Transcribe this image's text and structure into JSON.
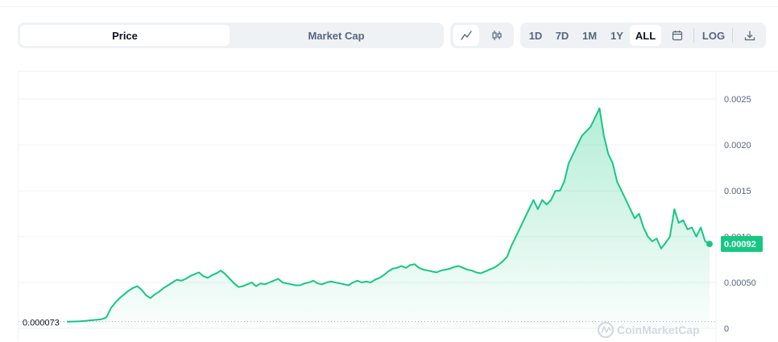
{
  "tabs": {
    "price_label": "Price",
    "market_cap_label": "Market Cap",
    "active": "price"
  },
  "chart_types": [
    {
      "name": "line-chart-icon",
      "active": true
    },
    {
      "name": "candlestick-icon",
      "active": false
    }
  ],
  "ranges": [
    "1D",
    "7D",
    "1M",
    "1Y",
    "ALL"
  ],
  "active_range": "ALL",
  "log_label": "LOG",
  "icons": {
    "calendar": "calendar-icon",
    "download": "download-icon"
  },
  "watermark": "CoinMarketCap",
  "colors": {
    "line": "#16c784",
    "badge": "#16c784",
    "text_muted": "#58667e"
  },
  "chart_data": {
    "type": "area",
    "title": "",
    "xlabel": "",
    "ylabel": "",
    "ylim": [
      0,
      0.0028
    ],
    "y_ticks": [
      "0.0025",
      "0.0020",
      "0.0015",
      "0.0010",
      "0.00050",
      "0"
    ],
    "y_tick_values": [
      0.0025,
      0.002,
      0.0015,
      0.001,
      0.0005,
      0
    ],
    "grid": true,
    "start_value_label": "0.000073",
    "start_value": 7.3e-05,
    "current_value_label": "0.00092",
    "current_value": 0.00092,
    "series": [
      {
        "values": [
          7.3e-05,
          7.4e-05,
          7.5e-05,
          7.6e-05,
          8e-05,
          8.5e-05,
          9e-05,
          9.5e-05,
          0.0001,
          0.00012,
          0.00022,
          0.00028,
          0.00033,
          0.00037,
          0.00041,
          0.00044,
          0.00046,
          0.00042,
          0.00036,
          0.00033,
          0.00037,
          0.0004,
          0.00044,
          0.00047,
          0.0005,
          0.00053,
          0.00052,
          0.00054,
          0.00057,
          0.00059,
          0.00061,
          0.00057,
          0.00055,
          0.00058,
          0.0006,
          0.00063,
          0.00059,
          0.00054,
          0.00049,
          0.00045,
          0.00046,
          0.00048,
          0.0005,
          0.00046,
          0.00049,
          0.00048,
          0.0005,
          0.00052,
          0.00054,
          0.0005,
          0.00049,
          0.00048,
          0.00047,
          0.00047,
          0.00049,
          0.0005,
          0.00052,
          0.00049,
          0.00048,
          0.0005,
          0.00051,
          0.0005,
          0.00049,
          0.00048,
          0.00047,
          0.0005,
          0.00052,
          0.0005,
          0.00051,
          0.0005,
          0.00053,
          0.00055,
          0.00058,
          0.00062,
          0.00065,
          0.00066,
          0.00068,
          0.00066,
          0.00069,
          0.0007,
          0.00066,
          0.00064,
          0.00063,
          0.00062,
          0.00061,
          0.00063,
          0.00064,
          0.00065,
          0.00067,
          0.00068,
          0.00066,
          0.00064,
          0.00063,
          0.00061,
          0.0006,
          0.00062,
          0.00064,
          0.00066,
          0.00069,
          0.00073,
          0.00078,
          0.0009,
          0.001,
          0.0011,
          0.0012,
          0.0013,
          0.0014,
          0.0013,
          0.0014,
          0.00135,
          0.0014,
          0.0015,
          0.0015,
          0.0016,
          0.0018,
          0.0019,
          0.002,
          0.0021,
          0.00215,
          0.0022,
          0.0023,
          0.0024,
          0.0021,
          0.0019,
          0.0018,
          0.0016,
          0.0015,
          0.0014,
          0.0013,
          0.0012,
          0.00125,
          0.0011,
          0.001,
          0.00095,
          0.00098,
          0.00087,
          0.00093,
          0.001,
          0.0013,
          0.00115,
          0.00118,
          0.00108,
          0.0011,
          0.001,
          0.0011,
          0.00095,
          0.00092
        ]
      }
    ]
  }
}
